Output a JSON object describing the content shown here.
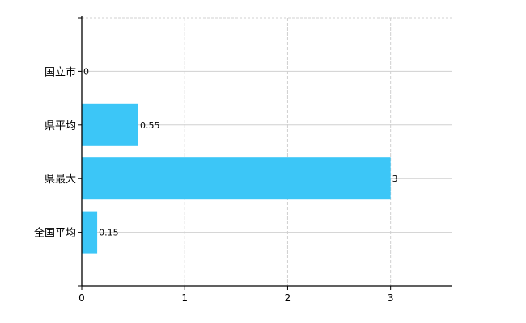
{
  "chart_data": {
    "type": "bar",
    "orientation": "horizontal",
    "categories": [
      "国立市",
      "県平均",
      "県最大",
      "全国平均"
    ],
    "values": [
      0,
      0.55,
      3,
      0.15
    ],
    "data_labels": [
      "0",
      "0.55",
      "3",
      "0.15"
    ],
    "xlim": [
      0,
      3.6
    ],
    "xticks": [
      "0",
      "1",
      "2",
      "3"
    ],
    "title": "",
    "xlabel": "",
    "ylabel": "",
    "grid": true,
    "legend": "none",
    "colors": {
      "bar": "#3cc6f7",
      "grid": "#d0d0d0",
      "axis": "#000000"
    }
  }
}
